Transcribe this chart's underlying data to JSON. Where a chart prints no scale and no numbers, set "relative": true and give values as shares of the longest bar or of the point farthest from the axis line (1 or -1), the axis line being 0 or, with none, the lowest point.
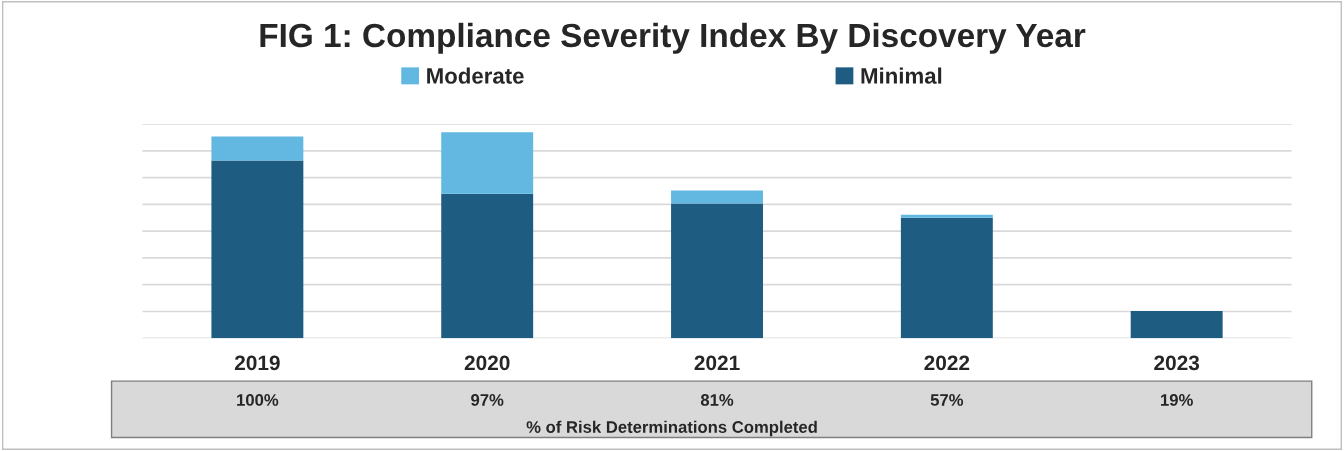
{
  "chart_data": {
    "type": "bar",
    "title": "FIG 1: Compliance Severity Index By Discovery Year",
    "categories": [
      "2019",
      "2020",
      "2021",
      "2022",
      "2023"
    ],
    "stacked": true,
    "relative": true,
    "grid": "y",
    "legend": "top",
    "series": [
      {
        "name": "Minimal",
        "color": "#1f5c82",
        "values": [
          0.863,
          0.702,
          0.654,
          0.585,
          0.132
        ]
      },
      {
        "name": "Moderate",
        "color": "#62b8e0",
        "values": [
          0.117,
          0.298,
          0.063,
          0.015,
          null
        ]
      }
    ],
    "annotations": [
      "100%",
      "97%",
      "81%",
      "57%",
      "19%",
      "% of Risk Determinations Completed"
    ]
  }
}
